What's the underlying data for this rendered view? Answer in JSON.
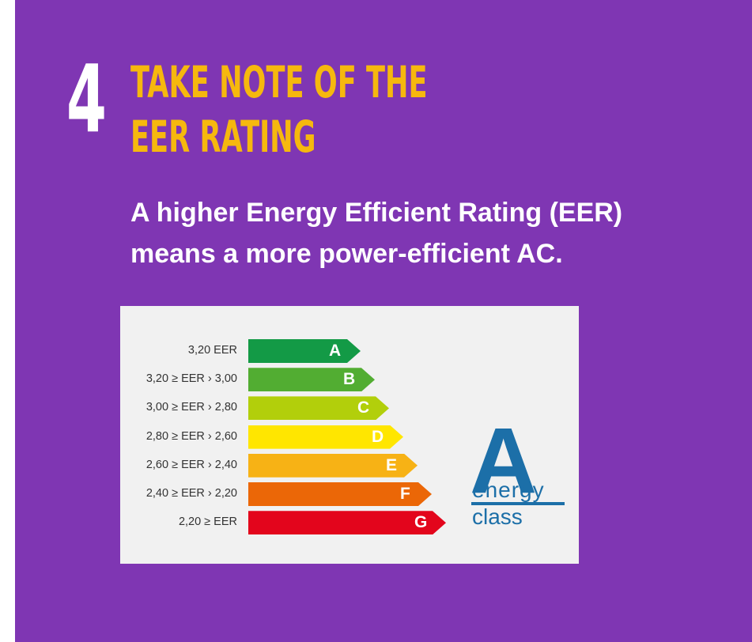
{
  "step": {
    "number": "4",
    "title_line_1": "TAKE NOTE OF THE",
    "title_line_2": "EER RATING"
  },
  "description": {
    "line_1": "A higher Energy Efficient Rating (EER)",
    "line_2": "means a more power-efficient AC."
  },
  "energy_label": {
    "rows": [
      {
        "range": "3,20 EER",
        "letter": "A",
        "color": "#139a46"
      },
      {
        "range": "3,20 ≥ EER › 3,00",
        "letter": "B",
        "color": "#52ad32"
      },
      {
        "range": "3,00 ≥ EER › 2,80",
        "letter": "C",
        "color": "#b2cf0b"
      },
      {
        "range": "2,80 ≥ EER › 2,60",
        "letter": "D",
        "color": "#ffe600"
      },
      {
        "range": "2,60 ≥ EER › 2,40",
        "letter": "E",
        "color": "#f7b215"
      },
      {
        "range": "2,40 ≥ EER › 2,20",
        "letter": "F",
        "color": "#eb6707"
      },
      {
        "range": "2,20 ≥ EER",
        "letter": "G",
        "color": "#e3051c"
      }
    ],
    "class_badge": {
      "letter": "A",
      "word_1": "energy",
      "word_2": "class",
      "color": "#1c6fa8"
    }
  },
  "colors": {
    "panel_background": "#7f36b3",
    "title": "#f6b80e",
    "text": "#ffffff",
    "label_card": "#f1f1f1"
  }
}
